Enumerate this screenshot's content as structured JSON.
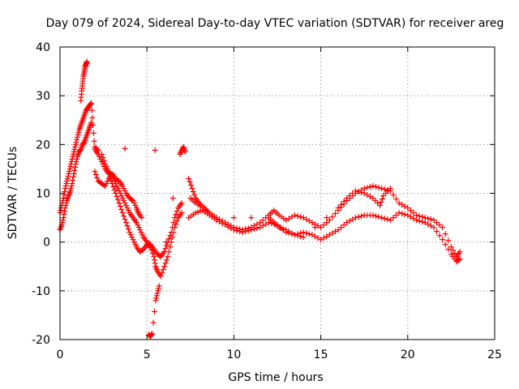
{
  "chart_data": {
    "type": "scatter",
    "title": "Day 079 of 2024, Sidereal Day-to-day VTEC variation (SDTVAR) for receiver areg",
    "xlabel": "GPS time / hours",
    "ylabel": "SDTVAR / TECUs",
    "xlim": [
      0,
      25
    ],
    "ylim": [
      -20,
      40
    ],
    "xticks": [
      0,
      5,
      10,
      15,
      20,
      25
    ],
    "yticks": [
      -20,
      -10,
      0,
      10,
      20,
      30,
      40
    ],
    "grid": true,
    "marker": "+",
    "series": [
      {
        "name": "trace-main",
        "color": "#ff0000",
        "points": [
          [
            0.0,
            6.0
          ],
          [
            0.1,
            7.5
          ],
          [
            0.2,
            9.0
          ],
          [
            0.3,
            11.0
          ],
          [
            0.4,
            12.5
          ],
          [
            0.5,
            14.0
          ],
          [
            0.6,
            15.5
          ],
          [
            0.7,
            17.0
          ],
          [
            0.8,
            18.5
          ],
          [
            0.9,
            20.0
          ],
          [
            1.0,
            21.5
          ],
          [
            1.1,
            23.0
          ],
          [
            1.2,
            24.0
          ],
          [
            1.3,
            25.0
          ],
          [
            1.4,
            26.0
          ],
          [
            1.5,
            27.0
          ],
          [
            1.6,
            27.5
          ],
          [
            1.7,
            28.0
          ],
          [
            1.8,
            28.5
          ],
          [
            1.9,
            24.0
          ],
          [
            2.0,
            19.0
          ],
          [
            2.2,
            18.0
          ],
          [
            2.4,
            16.5
          ],
          [
            2.6,
            15.0
          ],
          [
            2.8,
            14.0
          ],
          [
            3.0,
            12.0
          ],
          [
            3.2,
            10.0
          ],
          [
            3.4,
            8.0
          ],
          [
            3.6,
            6.0
          ],
          [
            3.8,
            4.0
          ],
          [
            4.0,
            2.0
          ],
          [
            4.2,
            0.5
          ],
          [
            4.4,
            -1.0
          ],
          [
            4.6,
            -2.0
          ],
          [
            4.8,
            -1.5
          ],
          [
            5.0,
            -0.5
          ],
          [
            5.2,
            -1.0
          ],
          [
            5.4,
            -3.0
          ],
          [
            5.5,
            -5.0
          ],
          [
            5.6,
            -6.0
          ],
          [
            5.8,
            -7.0
          ],
          [
            6.0,
            -5.0
          ],
          [
            6.2,
            -3.0
          ],
          [
            6.4,
            0.0
          ],
          [
            6.6,
            3.0
          ],
          [
            6.8,
            5.0
          ],
          [
            7.0,
            6.0
          ]
        ]
      },
      {
        "name": "trace-lower-start",
        "color": "#ff0000",
        "points": [
          [
            0.0,
            2.5
          ],
          [
            0.1,
            3.5
          ],
          [
            0.2,
            5.0
          ],
          [
            0.3,
            7.0
          ],
          [
            0.4,
            8.5
          ],
          [
            0.5,
            9.5
          ],
          [
            0.6,
            10.5
          ],
          [
            0.7,
            12.0
          ],
          [
            0.8,
            14.0
          ],
          [
            0.9,
            16.0
          ],
          [
            1.0,
            17.5
          ],
          [
            1.1,
            18.5
          ],
          [
            1.2,
            19.0
          ],
          [
            1.3,
            20.0
          ],
          [
            1.4,
            20.5
          ],
          [
            1.5,
            21.5
          ],
          [
            1.6,
            22.5
          ],
          [
            1.7,
            23.5
          ],
          [
            1.8,
            24.5
          ]
        ]
      },
      {
        "name": "trace-spike",
        "color": "#ff0000",
        "points": [
          [
            1.2,
            29.0
          ],
          [
            1.25,
            31.0
          ],
          [
            1.3,
            32.5
          ],
          [
            1.35,
            34.0
          ],
          [
            1.4,
            35.0
          ],
          [
            1.45,
            36.0
          ],
          [
            1.5,
            36.5
          ],
          [
            1.55,
            37.0
          ]
        ]
      },
      {
        "name": "trace-upper-mid",
        "color": "#ff0000",
        "points": [
          [
            2.0,
            14.5
          ],
          [
            2.2,
            12.5
          ],
          [
            2.4,
            12.0
          ],
          [
            2.6,
            11.5
          ],
          [
            2.8,
            13.0
          ],
          [
            3.0,
            14.0
          ],
          [
            3.2,
            13.0
          ],
          [
            3.4,
            12.5
          ],
          [
            3.6,
            11.5
          ],
          [
            3.8,
            10.0
          ],
          [
            4.0,
            9.0
          ],
          [
            4.2,
            8.5
          ],
          [
            4.4,
            7.0
          ],
          [
            4.5,
            6.0
          ],
          [
            4.7,
            5.0
          ]
        ]
      },
      {
        "name": "trace-lower-mid",
        "color": "#ff0000",
        "points": [
          [
            2.4,
            18.0
          ],
          [
            2.6,
            16.0
          ],
          [
            2.8,
            14.5
          ],
          [
            3.0,
            13.5
          ],
          [
            3.2,
            12.0
          ],
          [
            3.4,
            10.5
          ],
          [
            3.6,
            9.0
          ],
          [
            3.8,
            7.5
          ],
          [
            4.0,
            6.0
          ],
          [
            4.2,
            5.0
          ],
          [
            4.4,
            4.0
          ],
          [
            4.6,
            2.5
          ],
          [
            4.8,
            1.0
          ],
          [
            5.0,
            0.0
          ],
          [
            5.2,
            -0.5
          ],
          [
            5.4,
            -1.5
          ],
          [
            5.6,
            -2.5
          ],
          [
            5.8,
            -3.0
          ],
          [
            6.0,
            -2.0
          ],
          [
            6.2,
            0.0
          ],
          [
            6.4,
            2.0
          ],
          [
            6.6,
            5.0
          ],
          [
            6.8,
            7.0
          ],
          [
            7.0,
            8.0
          ]
        ]
      },
      {
        "name": "trace-outliers",
        "color": "#ff0000",
        "points": [
          [
            5.1,
            -19.0
          ],
          [
            5.2,
            -19.3
          ],
          [
            5.3,
            -18.8
          ],
          [
            5.5,
            -12.0
          ],
          [
            5.6,
            -10.5
          ],
          [
            5.7,
            -9.0
          ],
          [
            6.9,
            18.0
          ],
          [
            7.0,
            18.8
          ],
          [
            7.1,
            19.5
          ],
          [
            7.2,
            18.5
          ],
          [
            2.0,
            19.5
          ],
          [
            2.2,
            18.8
          ]
        ]
      },
      {
        "name": "trace-upper-late",
        "color": "#ff0000",
        "points": [
          [
            7.4,
            13.0
          ],
          [
            7.6,
            11.0
          ],
          [
            7.8,
            9.0
          ],
          [
            8.0,
            8.0
          ],
          [
            8.3,
            7.0
          ],
          [
            8.6,
            6.0
          ],
          [
            9.0,
            5.0
          ],
          [
            9.5,
            4.0
          ],
          [
            10.0,
            3.0
          ],
          [
            10.5,
            2.5
          ],
          [
            11.0,
            3.0
          ],
          [
            11.5,
            4.0
          ],
          [
            12.0,
            5.5
          ],
          [
            12.3,
            6.5
          ],
          [
            12.6,
            5.5
          ],
          [
            13.0,
            4.5
          ],
          [
            13.5,
            5.5
          ],
          [
            14.0,
            5.0
          ],
          [
            14.5,
            4.0
          ],
          [
            15.0,
            3.0
          ],
          [
            15.5,
            4.5
          ],
          [
            16.0,
            6.5
          ],
          [
            16.5,
            8.5
          ],
          [
            17.0,
            10.0
          ],
          [
            17.5,
            11.0
          ],
          [
            18.0,
            11.5
          ],
          [
            18.5,
            11.0
          ],
          [
            19.0,
            10.5
          ],
          [
            19.5,
            8.0
          ],
          [
            20.0,
            7.0
          ],
          [
            20.5,
            5.5
          ],
          [
            21.0,
            5.0
          ],
          [
            21.5,
            4.5
          ],
          [
            22.0,
            3.0
          ],
          [
            22.5,
            -1.0
          ],
          [
            22.8,
            -3.0
          ],
          [
            23.0,
            -2.0
          ]
        ]
      },
      {
        "name": "trace-lower-late",
        "color": "#ff0000",
        "points": [
          [
            7.4,
            5.0
          ],
          [
            7.8,
            6.0
          ],
          [
            8.2,
            6.5
          ],
          [
            8.6,
            5.5
          ],
          [
            9.0,
            4.5
          ],
          [
            9.5,
            3.5
          ],
          [
            10.0,
            2.5
          ],
          [
            10.5,
            2.0
          ],
          [
            11.0,
            2.5
          ],
          [
            11.5,
            3.0
          ],
          [
            12.0,
            4.0
          ],
          [
            12.5,
            3.5
          ],
          [
            13.0,
            2.0
          ],
          [
            13.5,
            1.5
          ],
          [
            14.0,
            2.0
          ],
          [
            14.5,
            1.5
          ],
          [
            15.0,
            0.5
          ],
          [
            15.5,
            1.5
          ],
          [
            16.0,
            2.5
          ],
          [
            16.5,
            4.0
          ],
          [
            17.0,
            5.0
          ],
          [
            17.5,
            5.5
          ],
          [
            18.0,
            5.5
          ],
          [
            18.5,
            5.0
          ],
          [
            19.0,
            4.5
          ],
          [
            19.5,
            6.0
          ],
          [
            20.0,
            5.5
          ],
          [
            20.5,
            4.5
          ],
          [
            21.0,
            4.0
          ],
          [
            21.5,
            3.0
          ],
          [
            22.0,
            0.5
          ],
          [
            22.5,
            -2.5
          ],
          [
            22.8,
            -4.0
          ],
          [
            23.0,
            -3.5
          ]
        ]
      },
      {
        "name": "trace-mid-late",
        "color": "#ff0000",
        "points": [
          [
            7.5,
            9.0
          ],
          [
            7.8,
            8.0
          ],
          [
            8.2,
            7.0
          ],
          [
            8.6,
            6.0
          ],
          [
            9.0,
            5.0
          ],
          [
            12.0,
            5.0
          ],
          [
            12.3,
            4.0
          ],
          [
            12.6,
            3.0
          ],
          [
            13.0,
            2.5
          ],
          [
            13.5,
            1.5
          ],
          [
            14.0,
            1.0
          ],
          [
            16.0,
            7.0
          ],
          [
            16.5,
            9.0
          ],
          [
            17.0,
            10.5
          ],
          [
            17.5,
            10.0
          ],
          [
            18.0,
            9.0
          ],
          [
            18.4,
            7.5
          ],
          [
            18.6,
            9.5
          ],
          [
            19.0,
            11.0
          ]
        ]
      }
    ]
  }
}
